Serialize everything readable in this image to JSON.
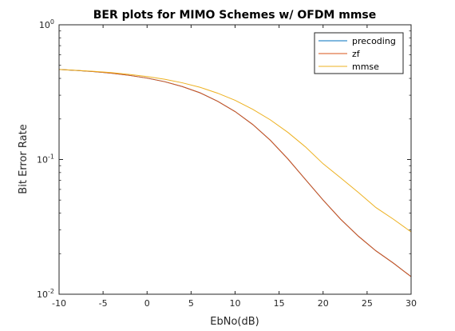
{
  "chart_data": {
    "type": "line",
    "title": "BER plots for MIMO Schemes w/ OFDM mmse",
    "xlabel": "EbNo(dB)",
    "ylabel": "Bit Error Rate",
    "xlim": [
      -10,
      30
    ],
    "ylim": [
      0.01,
      1
    ],
    "yscale": "log",
    "grid": false,
    "legend_position": "top-right",
    "x_ticks": [
      -10,
      -5,
      0,
      5,
      10,
      15,
      20,
      25,
      30
    ],
    "x_tick_labels": [
      "-10",
      "-5",
      "0",
      "5",
      "10",
      "15",
      "20",
      "25",
      "30"
    ],
    "y_ticks": [
      {
        "value": 0.01,
        "base": "10",
        "exp": "-2"
      },
      {
        "value": 0.1,
        "base": "10",
        "exp": "-1"
      },
      {
        "value": 1,
        "base": "10",
        "exp": "0"
      }
    ],
    "x": [
      -10,
      -8,
      -6,
      -4,
      -2,
      0,
      2,
      4,
      6,
      8,
      10,
      12,
      14,
      16,
      18,
      20,
      22,
      24,
      26,
      28,
      30
    ],
    "series": [
      {
        "name": "precoding",
        "color": "#0072bd",
        "values": [
          0.466,
          0.458,
          0.449,
          0.437,
          0.421,
          0.402,
          0.378,
          0.348,
          0.313,
          0.271,
          0.227,
          0.182,
          0.139,
          0.101,
          0.071,
          0.05,
          0.036,
          0.027,
          0.021,
          0.017,
          0.0135
        ]
      },
      {
        "name": "zf",
        "color": "#d95319",
        "values": [
          0.466,
          0.458,
          0.449,
          0.437,
          0.421,
          0.402,
          0.378,
          0.348,
          0.313,
          0.271,
          0.227,
          0.182,
          0.139,
          0.101,
          0.071,
          0.05,
          0.036,
          0.027,
          0.021,
          0.017,
          0.0135
        ]
      },
      {
        "name": "mmse",
        "color": "#edb120",
        "values": [
          0.466,
          0.459,
          0.451,
          0.441,
          0.428,
          0.413,
          0.394,
          0.371,
          0.344,
          0.311,
          0.275,
          0.236,
          0.197,
          0.159,
          0.124,
          0.093,
          0.073,
          0.057,
          0.044,
          0.036,
          0.029
        ]
      }
    ]
  }
}
